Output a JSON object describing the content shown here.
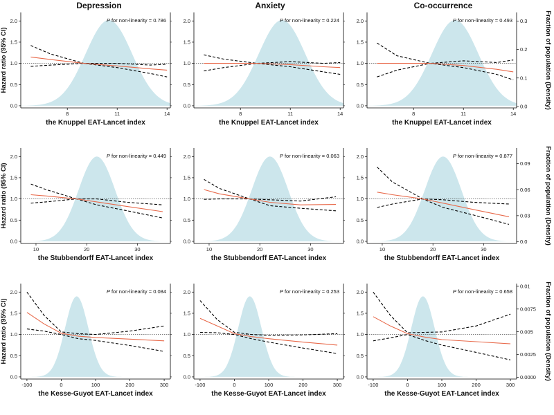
{
  "column_titles": [
    "Depression",
    "Anxiety",
    "Co-occurrence"
  ],
  "y_left_label": "Hazard ratio (95% CI)",
  "y_right_label": "Fraction of population (Density)",
  "p_prefix": "P",
  "p_suffix": " for non-linearity = ",
  "colors": {
    "density": "#cce6ec",
    "hr_line": "#e8694a",
    "ci_line": "#000000",
    "ref_line": "#555555"
  },
  "chart_data": [
    {
      "type": "line",
      "row": 0,
      "col": 0,
      "xlabel": "the Knuppel EAT-Lancet index",
      "xlim": [
        5.2,
        14.2
      ],
      "xticks": [
        8,
        11,
        14
      ],
      "ylim": [
        -0.05,
        2.2
      ],
      "yticks": [
        0.0,
        0.5,
        1.0,
        1.5,
        2.0
      ],
      "p_value": "0.786",
      "density": {
        "mean": 10.5,
        "sd": 1.4,
        "peak": 2.02,
        "ylim": [
          -0.005,
          0.33
        ],
        "yticks": []
      },
      "hr": {
        "x": [
          5.8,
          7,
          9,
          11,
          13,
          14
        ],
        "y": [
          1.15,
          1.09,
          1.0,
          0.94,
          0.87,
          0.84
        ]
      },
      "lower": {
        "x": [
          5.8,
          7,
          9,
          11,
          13,
          14
        ],
        "y": [
          0.93,
          0.96,
          1.0,
          0.9,
          0.76,
          0.68
        ]
      },
      "upper": {
        "x": [
          5.8,
          7,
          9,
          11,
          13,
          14
        ],
        "y": [
          1.42,
          1.22,
          1.0,
          1.0,
          0.96,
          0.98
        ]
      }
    },
    {
      "type": "line",
      "row": 0,
      "col": 1,
      "xlabel": "the Knuppel EAT-Lancet index",
      "xlim": [
        5.2,
        14.2
      ],
      "xticks": [
        8,
        11,
        14
      ],
      "ylim": [
        -0.05,
        2.2
      ],
      "yticks": [
        0.0,
        0.5,
        1.0,
        1.5,
        2.0
      ],
      "p_value": "0.224",
      "density": {
        "mean": 10.5,
        "sd": 1.4,
        "peak": 2.02,
        "ylim": [
          -0.005,
          0.33
        ],
        "yticks": []
      },
      "hr": {
        "x": [
          5.8,
          7,
          9,
          11,
          13,
          14
        ],
        "y": [
          1.0,
          1.0,
          1.0,
          0.97,
          0.92,
          0.9
        ]
      },
      "lower": {
        "x": [
          5.8,
          7,
          9,
          11,
          13,
          14
        ],
        "y": [
          0.82,
          0.9,
          1.0,
          0.92,
          0.8,
          0.74
        ]
      },
      "upper": {
        "x": [
          5.8,
          7,
          9,
          11,
          13,
          14
        ],
        "y": [
          1.2,
          1.1,
          1.0,
          1.04,
          1.0,
          1.02
        ]
      }
    },
    {
      "type": "line",
      "row": 0,
      "col": 2,
      "xlabel": "the Knuppel EAT-Lancet index",
      "xlim": [
        5.2,
        14.2
      ],
      "xticks": [
        8,
        11,
        14
      ],
      "ylim": [
        -0.05,
        2.2
      ],
      "yticks": [
        0.0,
        0.5,
        1.0,
        1.5,
        2.0
      ],
      "p_value": "0.493",
      "density": {
        "mean": 10.5,
        "sd": 1.4,
        "peak": 2.02,
        "ylim": [
          -0.005,
          0.33
        ],
        "yticks": [
          0.0,
          0.1,
          0.2,
          0.3
        ]
      },
      "hr": {
        "x": [
          5.8,
          7,
          9,
          11,
          13,
          14
        ],
        "y": [
          1.0,
          1.0,
          1.0,
          0.95,
          0.86,
          0.8
        ]
      },
      "lower": {
        "x": [
          5.8,
          7,
          9,
          11,
          13,
          14
        ],
        "y": [
          0.68,
          0.84,
          1.0,
          0.9,
          0.74,
          0.61
        ]
      },
      "upper": {
        "x": [
          5.8,
          7,
          9,
          11,
          13,
          14
        ],
        "y": [
          1.48,
          1.18,
          1.0,
          1.06,
          1.02,
          1.08
        ]
      }
    },
    {
      "type": "line",
      "row": 1,
      "col": 0,
      "xlabel": "the Stubbendorff EAT-Lancet index",
      "xlim": [
        7,
        36.5
      ],
      "xticks": [
        10,
        20,
        30
      ],
      "ylim": [
        -0.05,
        2.2
      ],
      "yticks": [
        0.0,
        0.5,
        1.0,
        1.5,
        2.0
      ],
      "p_value": "0.449",
      "density": {
        "mean": 22,
        "sd": 3.6,
        "peak": 2.0,
        "ylim": [
          -0.002,
          0.108
        ],
        "yticks": []
      },
      "hr": {
        "x": [
          9,
          12,
          18,
          22,
          28,
          35
        ],
        "y": [
          1.1,
          1.07,
          1.0,
          0.93,
          0.82,
          0.7
        ]
      },
      "lower": {
        "x": [
          9,
          12,
          18,
          22,
          28,
          35
        ],
        "y": [
          0.9,
          0.93,
          1.0,
          0.86,
          0.72,
          0.55
        ]
      },
      "upper": {
        "x": [
          9,
          12,
          18,
          22,
          28,
          35
        ],
        "y": [
          1.35,
          1.22,
          1.0,
          1.0,
          0.92,
          0.86
        ]
      }
    },
    {
      "type": "line",
      "row": 1,
      "col": 1,
      "xlabel": "the Stubbendorff EAT-Lancet index",
      "xlim": [
        7,
        36.5
      ],
      "xticks": [
        10,
        20,
        30
      ],
      "ylim": [
        -0.05,
        2.2
      ],
      "yticks": [
        0.0,
        0.5,
        1.0,
        1.5,
        2.0
      ],
      "p_value": "0.063",
      "density": {
        "mean": 22,
        "sd": 3.6,
        "peak": 2.0,
        "ylim": [
          -0.002,
          0.108
        ],
        "yticks": []
      },
      "hr": {
        "x": [
          9,
          12,
          18,
          22,
          28,
          35
        ],
        "y": [
          1.22,
          1.12,
          1.0,
          0.92,
          0.86,
          0.87
        ]
      },
      "lower": {
        "x": [
          9,
          12,
          18,
          22,
          28,
          35
        ],
        "y": [
          0.99,
          1.0,
          1.0,
          0.84,
          0.78,
          0.72
        ]
      },
      "upper": {
        "x": [
          9,
          12,
          18,
          22,
          28,
          35
        ],
        "y": [
          1.46,
          1.25,
          1.0,
          0.98,
          0.95,
          1.05
        ]
      }
    },
    {
      "type": "line",
      "row": 1,
      "col": 2,
      "xlabel": "the Stubbendorff EAT-Lancet index",
      "xlim": [
        7,
        36.5
      ],
      "xticks": [
        10,
        20,
        30
      ],
      "ylim": [
        -0.05,
        2.2
      ],
      "yticks": [
        0.0,
        0.5,
        1.0,
        1.5,
        2.0
      ],
      "p_value": "0.877",
      "density": {
        "mean": 22,
        "sd": 3.6,
        "peak": 2.0,
        "ylim": [
          -0.002,
          0.108
        ],
        "yticks": [
          0.0,
          0.03,
          0.06,
          0.09
        ]
      },
      "hr": {
        "x": [
          9,
          12,
          18,
          22,
          28,
          35
        ],
        "y": [
          1.16,
          1.1,
          1.0,
          0.9,
          0.75,
          0.58
        ]
      },
      "lower": {
        "x": [
          9,
          12,
          18,
          22,
          28,
          35
        ],
        "y": [
          0.8,
          0.88,
          1.0,
          0.8,
          0.62,
          0.4
        ]
      },
      "upper": {
        "x": [
          9,
          12,
          18,
          22,
          28,
          35
        ],
        "y": [
          1.75,
          1.4,
          1.0,
          0.98,
          0.92,
          0.88
        ]
      }
    },
    {
      "type": "line",
      "row": 2,
      "col": 0,
      "xlabel": "the Kesse-Guyot EAT-Lancet index",
      "xlim": [
        -118,
        318
      ],
      "xticks": [
        -100,
        0,
        100,
        200,
        300
      ],
      "ylim": [
        -0.05,
        2.2
      ],
      "yticks": [
        0.0,
        0.5,
        1.0,
        1.5,
        2.0
      ],
      "p_value": "0.084",
      "density": {
        "mean": 45,
        "sd": 34,
        "peak": 1.9,
        "ylim": [
          -0.0002,
          0.0103
        ],
        "yticks": []
      },
      "hr": {
        "x": [
          -100,
          -50,
          0,
          50,
          100,
          200,
          300
        ],
        "y": [
          1.52,
          1.25,
          1.03,
          0.96,
          0.93,
          0.89,
          0.85
        ]
      },
      "lower": {
        "x": [
          -100,
          -50,
          0,
          50,
          100,
          200,
          300
        ],
        "y": [
          1.13,
          1.08,
          1.0,
          0.9,
          0.86,
          0.74,
          0.6
        ]
      },
      "upper": {
        "x": [
          -100,
          -50,
          0,
          50,
          100,
          200,
          300
        ],
        "y": [
          2.0,
          1.45,
          1.06,
          1.02,
          1.0,
          1.08,
          1.2
        ]
      }
    },
    {
      "type": "line",
      "row": 2,
      "col": 1,
      "xlabel": "the Kesse-Guyot EAT-Lancet index",
      "xlim": [
        -118,
        318
      ],
      "xticks": [
        -100,
        0,
        100,
        200,
        300
      ],
      "ylim": [
        -0.05,
        2.2
      ],
      "yticks": [
        0.0,
        0.5,
        1.0,
        1.5,
        2.0
      ],
      "p_value": "0.253",
      "density": {
        "mean": 45,
        "sd": 34,
        "peak": 1.9,
        "ylim": [
          -0.0002,
          0.0103
        ],
        "yticks": []
      },
      "hr": {
        "x": [
          -100,
          -50,
          0,
          50,
          100,
          200,
          300
        ],
        "y": [
          1.38,
          1.2,
          1.02,
          0.95,
          0.9,
          0.82,
          0.75
        ]
      },
      "lower": {
        "x": [
          -100,
          -50,
          0,
          50,
          100,
          200,
          300
        ],
        "y": [
          1.05,
          1.04,
          1.0,
          0.9,
          0.82,
          0.68,
          0.55
        ]
      },
      "upper": {
        "x": [
          -100,
          -50,
          0,
          50,
          100,
          200,
          300
        ],
        "y": [
          1.8,
          1.35,
          1.05,
          1.0,
          0.98,
          0.99,
          1.02
        ]
      }
    },
    {
      "type": "line",
      "row": 2,
      "col": 2,
      "xlabel": "the Kesse-Guyot EAT-Lancet index",
      "xlim": [
        -118,
        318
      ],
      "xticks": [
        -100,
        0,
        100,
        200,
        300
      ],
      "ylim": [
        -0.05,
        2.2
      ],
      "yticks": [
        0.0,
        0.5,
        1.0,
        1.5,
        2.0
      ],
      "p_value": "0.658",
      "density": {
        "mean": 45,
        "sd": 34,
        "peak": 1.9,
        "ylim": [
          -0.0002,
          0.0103
        ],
        "yticks": [
          0.0,
          0.0025,
          0.005,
          0.0075,
          0.01
        ]
      },
      "hr": {
        "x": [
          -100,
          -50,
          0,
          50,
          100,
          200,
          300
        ],
        "y": [
          1.42,
          1.2,
          1.02,
          0.94,
          0.88,
          0.83,
          0.78
        ]
      },
      "lower": {
        "x": [
          -100,
          -50,
          0,
          50,
          100,
          200,
          300
        ],
        "y": [
          0.85,
          0.92,
          1.0,
          0.86,
          0.75,
          0.58,
          0.4
        ]
      },
      "upper": {
        "x": [
          -100,
          -50,
          0,
          50,
          100,
          200,
          300
        ],
        "y": [
          2.0,
          1.45,
          1.04,
          1.05,
          1.06,
          1.2,
          1.48
        ]
      }
    }
  ]
}
